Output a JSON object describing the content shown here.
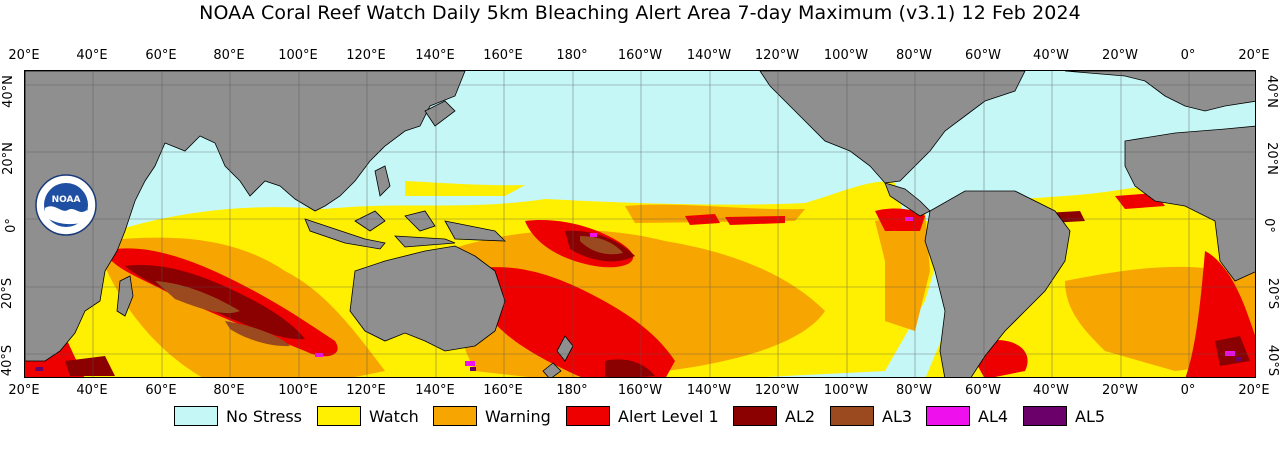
{
  "title": "NOAA Coral Reef Watch Daily 5km Bleaching Alert Area 7-day Maximum  (v3.1)   12 Feb 2024",
  "logo": {
    "icon": "noaa-logo-icon",
    "text": "NOAA"
  },
  "longitude_labels": [
    "20°E",
    "40°E",
    "60°E",
    "80°E",
    "100°E",
    "120°E",
    "140°E",
    "160°E",
    "180°",
    "160°W",
    "140°W",
    "120°W",
    "100°W",
    "80°W",
    "60°W",
    "40°W",
    "20°W",
    "0°",
    "20°E"
  ],
  "latitude_labels_left": [
    "40°N",
    "20°N",
    "0°",
    "20°S",
    "40°S"
  ],
  "latitude_labels_right": [
    "40°N",
    "20°N",
    "0°",
    "20°S",
    "40°S"
  ],
  "legend": [
    {
      "label": "No Stress",
      "color": "#c6f7f7"
    },
    {
      "label": "Watch",
      "color": "#ffef00"
    },
    {
      "label": "Warning",
      "color": "#f7a500"
    },
    {
      "label": "Alert Level 1",
      "color": "#ee0000"
    },
    {
      "label": "AL2",
      "color": "#8b0000"
    },
    {
      "label": "AL3",
      "color": "#9a4a1e"
    },
    {
      "label": "AL4",
      "color": "#ee11ee"
    },
    {
      "label": "AL5",
      "color": "#6b006b"
    }
  ],
  "colors": {
    "land": "#8f8f8f",
    "ocean_default": "#c6f7f7",
    "grid": "#555555"
  }
}
